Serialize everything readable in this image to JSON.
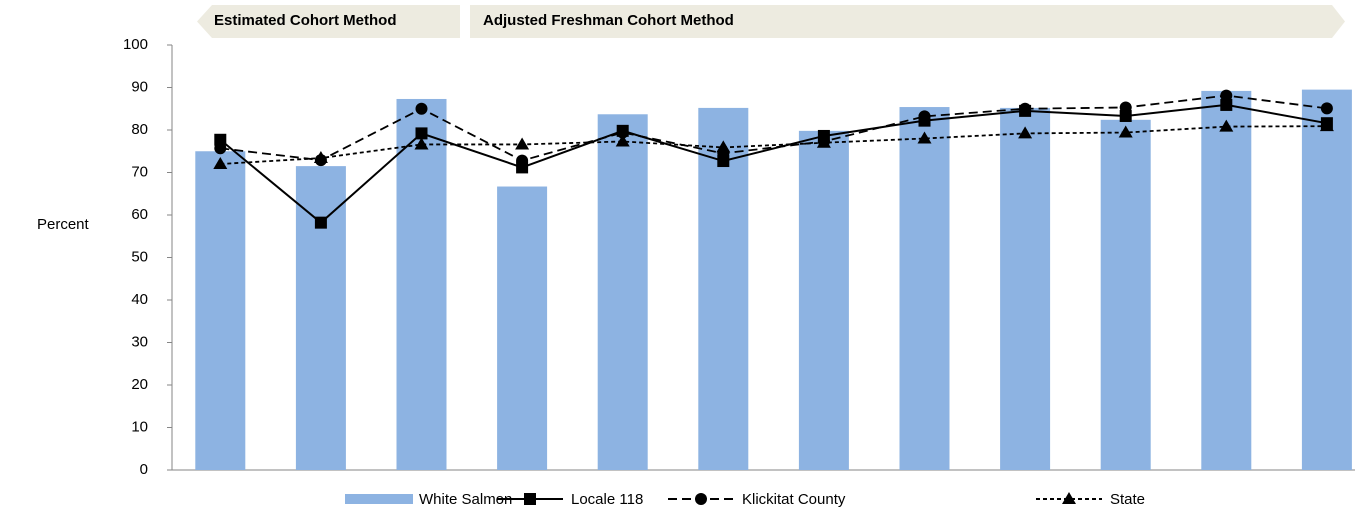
{
  "chart_data": {
    "type": "bar_line",
    "method_labels": [
      "Estimated Cohort Method",
      "Adjusted Freshman Cohort Method"
    ],
    "y_label": "Percent",
    "categories": [
      null,
      null,
      null,
      null,
      null,
      null,
      null,
      null,
      null,
      null,
      null,
      null
    ],
    "ylim": [
      0,
      100
    ],
    "yticks": [
      0,
      10,
      20,
      30,
      40,
      50,
      60,
      70,
      80,
      90,
      100
    ],
    "series": [
      {
        "name": "White Salmon",
        "kind": "bar",
        "color": "#8db3e2",
        "values": [
          75.0,
          71.5,
          87.3,
          66.7,
          83.7,
          85.2,
          79.8,
          85.4,
          85.2,
          82.4,
          89.2,
          89.5
        ]
      },
      {
        "name": "Locale 118",
        "kind": "line",
        "color": "#000000",
        "dash": "solid",
        "marker": "square",
        "values": [
          77.7,
          58.2,
          79.2,
          71.2,
          79.8,
          72.7,
          78.6,
          82.2,
          84.5,
          83.3,
          85.9,
          81.6
        ]
      },
      {
        "name": "Klickitat County",
        "kind": "line",
        "color": "#000000",
        "dash": "long",
        "marker": "circle",
        "values": [
          75.7,
          72.9,
          85.0,
          72.8,
          79.4,
          74.5,
          77.3,
          83.2,
          85.0,
          85.3,
          88.1,
          85.1
        ]
      },
      {
        "name": "State",
        "kind": "line",
        "color": "#000000",
        "dash": "short",
        "marker": "triangle",
        "values": [
          72.0,
          73.4,
          76.6,
          76.6,
          77.3,
          75.9,
          77.0,
          78.0,
          79.2,
          79.4,
          80.8,
          80.9
        ]
      }
    ]
  }
}
